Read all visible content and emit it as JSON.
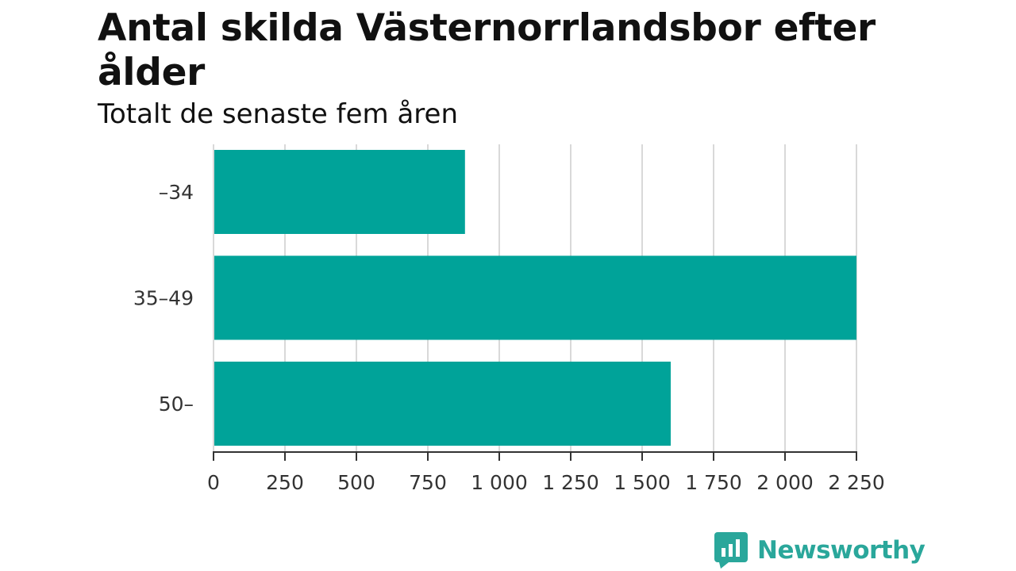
{
  "title": "Antal skilda Västernorrlandsbor efter ålder",
  "subtitle": "Totalt de senaste fem åren",
  "colors": {
    "bar": "#00a399",
    "grid": "#d9d9d9",
    "axis": "#333333",
    "logo": "#2aa79b"
  },
  "logo": {
    "text": "Newsworthy",
    "icon": "newsworthy-logo-icon"
  },
  "chart_data": {
    "type": "bar",
    "orientation": "horizontal",
    "categories": [
      "–34",
      "35–49",
      "50–"
    ],
    "values": [
      880,
      2250,
      1600
    ],
    "xlim": [
      0,
      2250
    ],
    "ticks": [
      0,
      250,
      500,
      750,
      1000,
      1250,
      1500,
      1750,
      2000,
      2250
    ],
    "tick_labels": [
      "0",
      "250",
      "500",
      "750",
      "1 000",
      "1 250",
      "1 500",
      "1 750",
      "2 000",
      "2 250"
    ],
    "grid": true,
    "legend": false
  }
}
